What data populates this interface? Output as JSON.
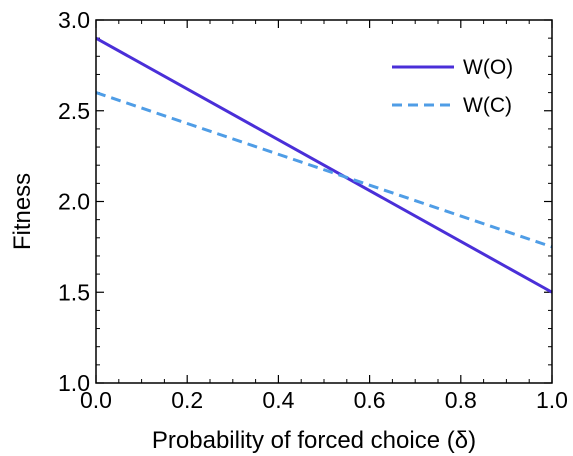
{
  "chart_data": {
    "type": "line",
    "x": [
      0.0,
      1.0
    ],
    "series": [
      {
        "name": "W(O)",
        "values": [
          2.9,
          1.5
        ],
        "color": "#4a2fd8",
        "style": "solid"
      },
      {
        "name": "W(C)",
        "values": [
          2.6,
          1.75
        ],
        "color": "#4f9de6",
        "style": "dashed"
      }
    ],
    "xlabel": "Probability of forced choice (δ)",
    "ylabel": "Fitness",
    "xlim": [
      0.0,
      1.0
    ],
    "ylim": [
      1.0,
      3.0
    ],
    "x_ticks": [
      "0.0",
      "0.2",
      "0.4",
      "0.6",
      "0.8",
      "1.0"
    ],
    "y_ticks": [
      "1.0",
      "1.5",
      "2.0",
      "2.5",
      "3.0"
    ],
    "legend_position": "top-right",
    "grid": false
  }
}
